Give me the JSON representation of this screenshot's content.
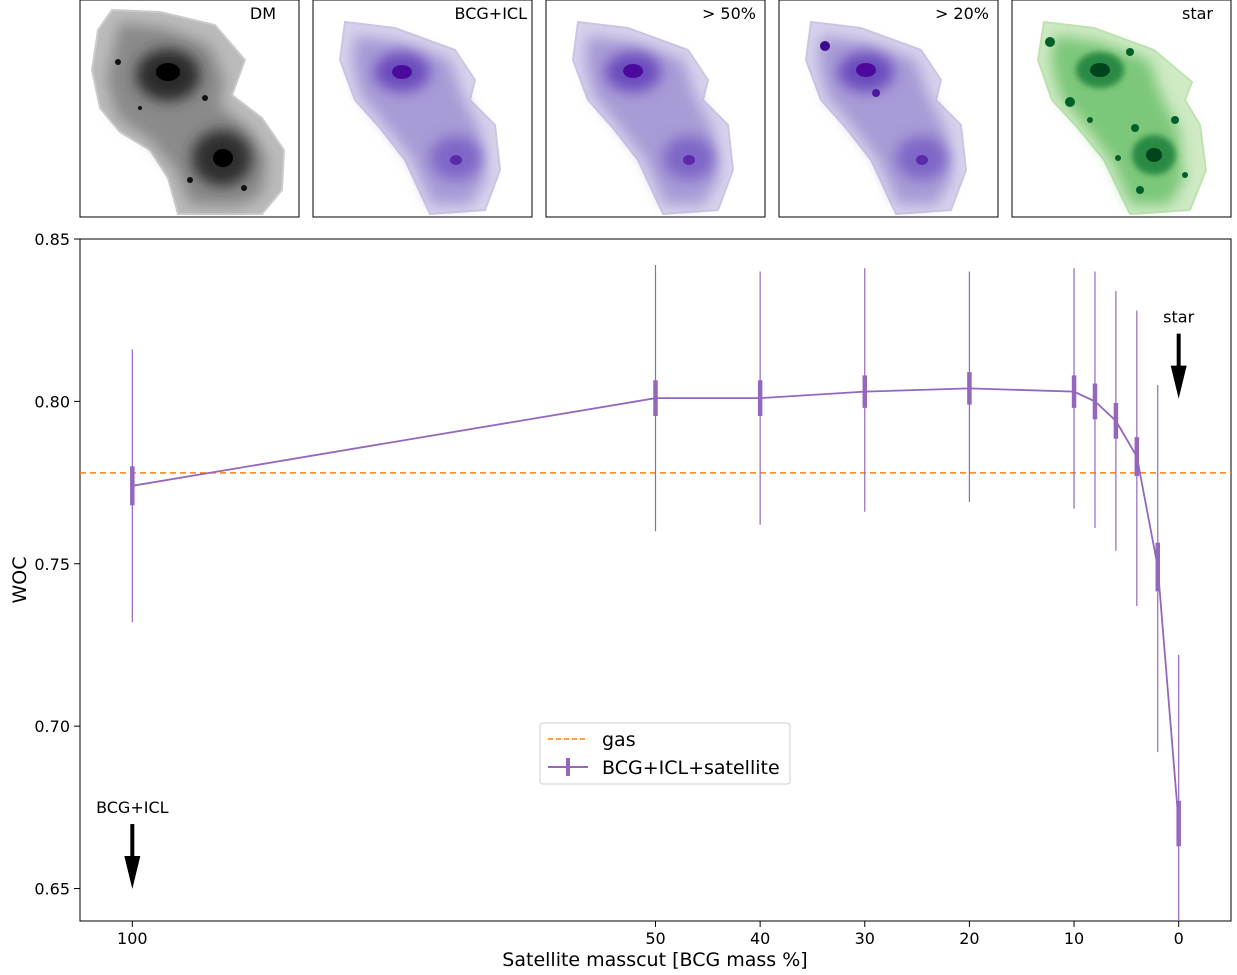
{
  "panels": [
    {
      "label": "DM",
      "color": "#000000"
    },
    {
      "label": "BCG+ICL",
      "color": "#4b0a9c"
    },
    {
      "label": "> 50%",
      "color": "#4b0a9c"
    },
    {
      "label": "> 20%",
      "color": "#4b0a9c"
    },
    {
      "label": "star",
      "color": "#00602a"
    }
  ],
  "chart_data": {
    "type": "line",
    "title": "",
    "xlabel": "Satellite masscut [BCG mass %]",
    "ylabel": "WOC",
    "xlim": [
      105,
      -5
    ],
    "ylim": [
      0.64,
      0.85
    ],
    "x_ticks": [
      100,
      50,
      40,
      30,
      20,
      10,
      0
    ],
    "y_ticks": [
      0.65,
      0.7,
      0.75,
      0.8,
      0.85
    ],
    "y_tick_labels": [
      "0.65",
      "0.70",
      "0.75",
      "0.80",
      "0.85"
    ],
    "legend_placement": "center",
    "series": [
      {
        "name": "BCG+ICL+satellite",
        "color": "#9467bd",
        "x": [
          100,
          50,
          40,
          30,
          20,
          10,
          8,
          6,
          4,
          2,
          0
        ],
        "y": [
          0.774,
          0.801,
          0.801,
          0.803,
          0.804,
          0.803,
          0.8,
          0.794,
          0.783,
          0.749,
          0.67
        ],
        "err_thick": [
          0.006,
          0.0055,
          0.0055,
          0.005,
          0.005,
          0.005,
          0.0055,
          0.0055,
          0.006,
          0.0075,
          0.007
        ],
        "err_thin_low": [
          0.732,
          0.76,
          0.762,
          0.766,
          0.769,
          0.767,
          0.761,
          0.754,
          0.737,
          0.692,
          0.64
        ],
        "err_thin_high": [
          0.816,
          0.842,
          0.84,
          0.841,
          0.84,
          0.841,
          0.84,
          0.834,
          0.828,
          0.805,
          0.722
        ]
      }
    ],
    "hlines": [
      {
        "name": "gas",
        "y": 0.778,
        "color": "#ff7f0e",
        "style": "dashed"
      }
    ],
    "annotations": [
      {
        "text": "star",
        "x": 0,
        "y": 0.815,
        "arrow": "down"
      },
      {
        "text": "BCG+ICL",
        "x": 100,
        "y": 0.664,
        "arrow": "down"
      }
    ]
  }
}
